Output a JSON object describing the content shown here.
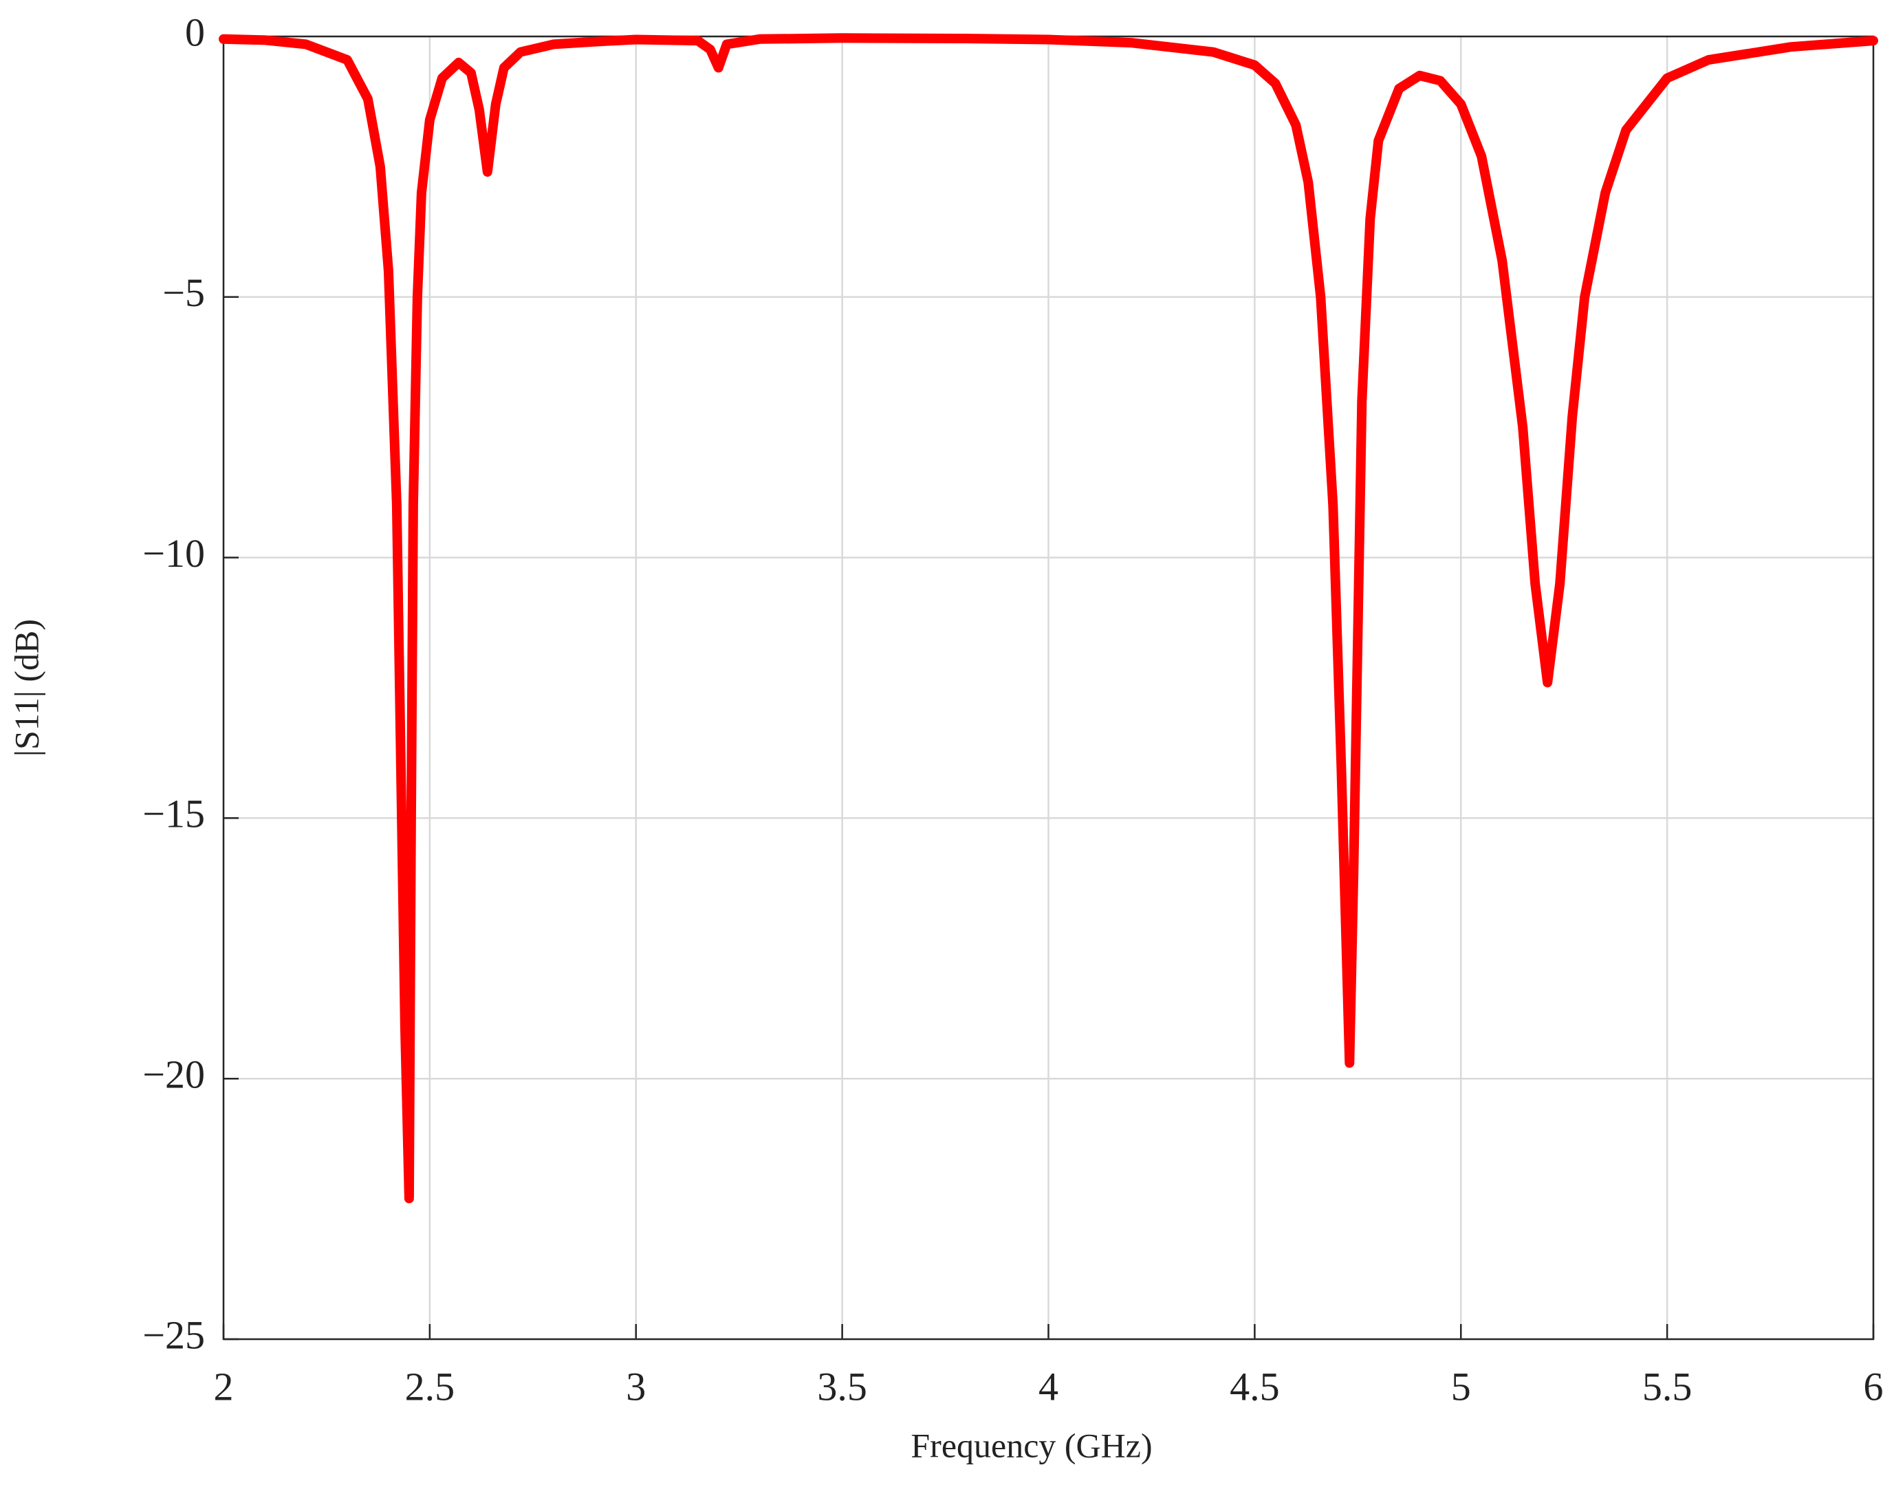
{
  "chart_data": {
    "type": "line",
    "xlabel": "Frequency (GHz)",
    "ylabel": "|S11| (dB)",
    "xlim": [
      2,
      6
    ],
    "xticks": [
      2,
      2.5,
      3,
      3.5,
      4,
      4.5,
      5,
      5.5,
      6
    ],
    "ylim": [
      -25,
      0
    ],
    "yticks": [
      {
        "value": -25,
        "label": "−25"
      },
      {
        "value": -20,
        "label": "−20"
      },
      {
        "value": -15,
        "label": "−15"
      },
      {
        "value": -10,
        "label": "−10"
      },
      {
        "value": -5,
        "label": "−5"
      },
      0
    ],
    "grid": true,
    "x": [
      2.0,
      2.1,
      2.2,
      2.3,
      2.35,
      2.38,
      2.4,
      2.42,
      2.43,
      2.44,
      2.45,
      2.455,
      2.46,
      2.47,
      2.48,
      2.5,
      2.53,
      2.57,
      2.6,
      2.62,
      2.64,
      2.66,
      2.68,
      2.72,
      2.8,
      2.9,
      3.0,
      3.15,
      3.18,
      3.2,
      3.22,
      3.3,
      3.5,
      3.8,
      4.0,
      4.2,
      4.4,
      4.5,
      4.55,
      4.6,
      4.63,
      4.66,
      4.69,
      4.71,
      4.73,
      4.74,
      4.76,
      4.78,
      4.8,
      4.85,
      4.9,
      4.95,
      5.0,
      5.05,
      5.1,
      5.15,
      5.18,
      5.21,
      5.24,
      5.27,
      5.3,
      5.35,
      5.4,
      5.5,
      5.6,
      5.8,
      6.0
    ],
    "series": [
      {
        "color": "#ff0000",
        "values": [
          -0.05,
          -0.07,
          -0.15,
          -0.45,
          -1.2,
          -2.5,
          -4.5,
          -9,
          -14,
          -19,
          -22.3,
          -15,
          -9,
          -5,
          -3,
          -1.6,
          -0.8,
          -0.5,
          -0.7,
          -1.4,
          -2.6,
          -1.3,
          -0.6,
          -0.3,
          -0.15,
          -0.1,
          -0.06,
          -0.08,
          -0.25,
          -0.6,
          -0.15,
          -0.05,
          -0.03,
          -0.04,
          -0.06,
          -0.12,
          -0.3,
          -0.55,
          -0.9,
          -1.7,
          -2.8,
          -5,
          -9,
          -14,
          -19.7,
          -16,
          -7,
          -3.5,
          -2,
          -1,
          -0.75,
          -0.85,
          -1.3,
          -2.3,
          -4.3,
          -7.5,
          -10.5,
          -12.4,
          -10.5,
          -7.3,
          -5,
          -3,
          -1.8,
          -0.8,
          -0.45,
          -0.2,
          -0.08
        ]
      }
    ]
  }
}
